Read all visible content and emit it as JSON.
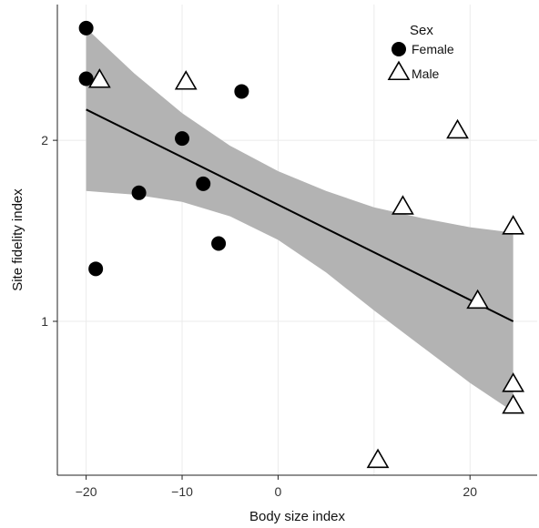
{
  "chart_data": {
    "type": "scatter",
    "xlabel": "Body size index",
    "ylabel": "Site fidelity index",
    "xlim": [
      -23,
      27
    ],
    "ylim": [
      0.15,
      2.75
    ],
    "xticks": [
      -20,
      -10,
      0,
      20
    ],
    "xtick_labels": [
      "−20",
      "−10",
      "0",
      "20"
    ],
    "yticks": [
      1,
      2
    ],
    "ytick_labels": [
      "1",
      "2"
    ],
    "minor_xticks": [
      10
    ],
    "grid": true,
    "legend": {
      "title": "Sex",
      "placement": "top-right"
    },
    "series": [
      {
        "name": "Female",
        "marker": "filled-circle",
        "color": "#000000",
        "points": [
          {
            "x": -20.0,
            "y": 2.62
          },
          {
            "x": -20.0,
            "y": 2.34
          },
          {
            "x": -19.0,
            "y": 1.29
          },
          {
            "x": -14.5,
            "y": 1.71
          },
          {
            "x": -10.0,
            "y": 2.01
          },
          {
            "x": -7.8,
            "y": 1.76
          },
          {
            "x": -6.2,
            "y": 1.43
          },
          {
            "x": -3.8,
            "y": 2.27
          }
        ]
      },
      {
        "name": "Male",
        "marker": "open-triangle",
        "color": "#000000",
        "points": [
          {
            "x": -18.6,
            "y": 2.33
          },
          {
            "x": -9.6,
            "y": 2.32
          },
          {
            "x": 10.4,
            "y": 0.23
          },
          {
            "x": 13.0,
            "y": 1.63
          },
          {
            "x": 18.7,
            "y": 2.05
          },
          {
            "x": 20.8,
            "y": 1.11
          },
          {
            "x": 24.5,
            "y": 1.52
          },
          {
            "x": 24.5,
            "y": 0.65
          },
          {
            "x": 24.5,
            "y": 0.53
          }
        ]
      }
    ],
    "regression": {
      "line": [
        {
          "x": -20.0,
          "y": 2.17
        },
        {
          "x": 24.5,
          "y": 1.0
        }
      ],
      "band_upper": [
        {
          "x": -20.0,
          "y": 2.62
        },
        {
          "x": -15.0,
          "y": 2.37
        },
        {
          "x": -10.0,
          "y": 2.15
        },
        {
          "x": -5.0,
          "y": 1.97
        },
        {
          "x": 0.0,
          "y": 1.83
        },
        {
          "x": 5.0,
          "y": 1.72
        },
        {
          "x": 10.0,
          "y": 1.63
        },
        {
          "x": 15.0,
          "y": 1.57
        },
        {
          "x": 20.0,
          "y": 1.52
        },
        {
          "x": 24.5,
          "y": 1.49
        }
      ],
      "band_lower": [
        {
          "x": -20.0,
          "y": 1.72
        },
        {
          "x": -15.0,
          "y": 1.7
        },
        {
          "x": -10.0,
          "y": 1.66
        },
        {
          "x": -5.0,
          "y": 1.58
        },
        {
          "x": 0.0,
          "y": 1.45
        },
        {
          "x": 5.0,
          "y": 1.27
        },
        {
          "x": 10.0,
          "y": 1.06
        },
        {
          "x": 15.0,
          "y": 0.86
        },
        {
          "x": 20.0,
          "y": 0.66
        },
        {
          "x": 24.5,
          "y": 0.5
        }
      ],
      "band_color": "#b3b3b3",
      "line_color": "#000000"
    }
  }
}
